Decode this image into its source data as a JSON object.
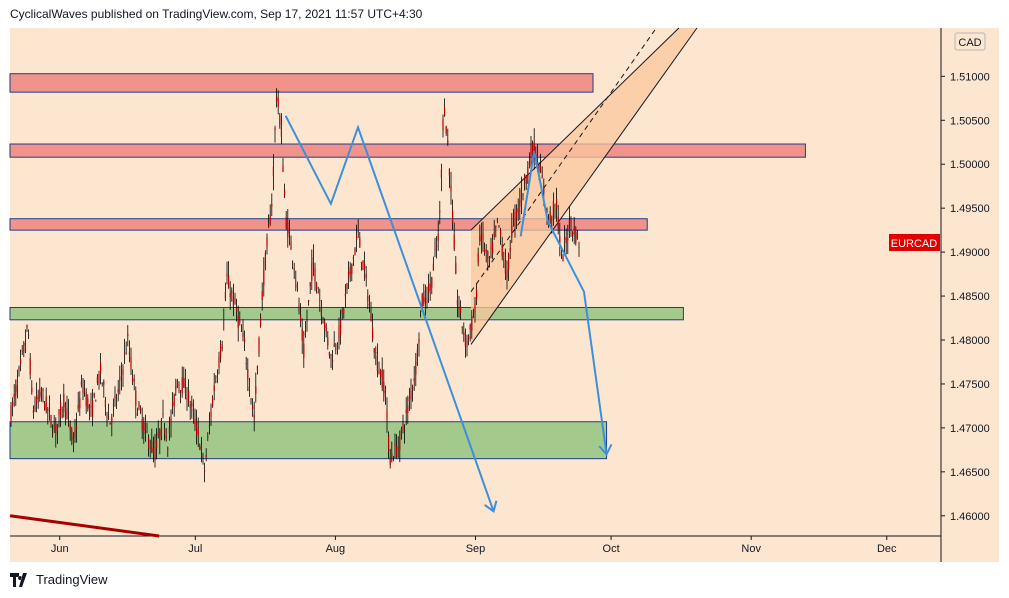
{
  "header": {
    "text": "CyclicalWaves published on TradingView.com, Sep 17, 2021 11:57 UTC+4:30"
  },
  "footer": {
    "brand": "TradingView",
    "logo_icon": "tradingview-logo-icon"
  },
  "colors": {
    "background": "#fde6cf",
    "resistance_zone": "#f1938b",
    "support_zone": "#a3c98c",
    "zone_border": "#1d3d8a",
    "channel_fill": "#f9c79c",
    "arrow": "#3d8fdb",
    "candle": "#b40000",
    "wick": "#000000",
    "trendline": "#a60000",
    "badge": "#e10000"
  },
  "chart_data": {
    "type": "candlestick",
    "symbol": "EURCAD",
    "currency": "CAD",
    "x_axis": {
      "ticks": [
        "Jun",
        "Jul",
        "Aug",
        "Sep",
        "Oct",
        "Nov",
        "Dec"
      ],
      "range": [
        "2021-05-21",
        "2021-12-13"
      ]
    },
    "y_axis": {
      "ticks": [
        "1.51000",
        "1.50500",
        "1.50000",
        "1.49500",
        "1.49000",
        "1.48500",
        "1.48000",
        "1.47500",
        "1.47000",
        "1.46500",
        "1.46000"
      ],
      "ylim": [
        1.4577,
        1.5155
      ]
    },
    "last_price_label": "EURCAD",
    "price_path": [
      [
        "2021-05-21",
        1.471
      ],
      [
        "2021-05-23",
        1.476
      ],
      [
        "2021-05-25",
        1.4815
      ],
      [
        "2021-05-26",
        1.472
      ],
      [
        "2021-05-28",
        1.474
      ],
      [
        "2021-05-31",
        1.4695
      ],
      [
        "2021-06-02",
        1.4735
      ],
      [
        "2021-06-04",
        1.468
      ],
      [
        "2021-06-06",
        1.475
      ],
      [
        "2021-06-08",
        1.4715
      ],
      [
        "2021-06-10",
        1.4765
      ],
      [
        "2021-06-12",
        1.4705
      ],
      [
        "2021-06-14",
        1.474
      ],
      [
        "2021-06-16",
        1.48
      ],
      [
        "2021-06-18",
        1.4728
      ],
      [
        "2021-06-20",
        1.4695
      ],
      [
        "2021-06-22",
        1.467
      ],
      [
        "2021-06-24",
        1.471
      ],
      [
        "2021-06-25",
        1.4685
      ],
      [
        "2021-06-27",
        1.4755
      ],
      [
        "2021-06-29",
        1.4745
      ],
      [
        "2021-07-01",
        1.4705
      ],
      [
        "2021-07-02",
        1.4685
      ],
      [
        "2021-07-03",
        1.465
      ],
      [
        "2021-07-05",
        1.474
      ],
      [
        "2021-07-07",
        1.48
      ],
      [
        "2021-07-08",
        1.487
      ],
      [
        "2021-07-10",
        1.4835
      ],
      [
        "2021-07-12",
        1.479
      ],
      [
        "2021-07-14",
        1.471
      ],
      [
        "2021-07-16",
        1.4865
      ],
      [
        "2021-07-18",
        1.496
      ],
      [
        "2021-07-19",
        1.508
      ],
      [
        "2021-07-20",
        1.504
      ],
      [
        "2021-07-21",
        1.494
      ],
      [
        "2021-07-23",
        1.4885
      ],
      [
        "2021-07-25",
        1.4785
      ],
      [
        "2021-07-27",
        1.489
      ],
      [
        "2021-07-29",
        1.4835
      ],
      [
        "2021-07-31",
        1.478
      ],
      [
        "2021-08-02",
        1.481
      ],
      [
        "2021-08-04",
        1.487
      ],
      [
        "2021-08-06",
        1.492
      ],
      [
        "2021-08-08",
        1.486
      ],
      [
        "2021-08-10",
        1.478
      ],
      [
        "2021-08-12",
        1.4745
      ],
      [
        "2021-08-13",
        1.4665
      ],
      [
        "2021-08-15",
        1.468
      ],
      [
        "2021-08-17",
        1.472
      ],
      [
        "2021-08-19",
        1.4775
      ],
      [
        "2021-08-20",
        1.484
      ],
      [
        "2021-08-22",
        1.486
      ],
      [
        "2021-08-24",
        1.4925
      ],
      [
        "2021-08-25",
        1.5075
      ],
      [
        "2021-08-26",
        1.5015
      ],
      [
        "2021-08-27",
        1.4935
      ],
      [
        "2021-08-28",
        1.4845
      ],
      [
        "2021-08-30",
        1.4795
      ],
      [
        "2021-09-01",
        1.4835
      ],
      [
        "2021-09-02",
        1.4925
      ],
      [
        "2021-09-04",
        1.4885
      ],
      [
        "2021-09-06",
        1.4935
      ],
      [
        "2021-09-08",
        1.487
      ],
      [
        "2021-09-09",
        1.4925
      ],
      [
        "2021-09-11",
        1.496
      ],
      [
        "2021-09-13",
        1.5005
      ],
      [
        "2021-09-14",
        1.502
      ],
      [
        "2021-09-16",
        1.4975
      ],
      [
        "2021-09-17",
        1.4935
      ],
      [
        "2021-09-19",
        1.4955
      ],
      [
        "2021-09-20",
        1.489
      ],
      [
        "2021-09-22",
        1.4935
      ],
      [
        "2021-09-24",
        1.491
      ]
    ],
    "zones": [
      {
        "kind": "resistance",
        "from": "2021-05-21",
        "to": "2021-09-27",
        "low": 1.5082,
        "high": 1.5103
      },
      {
        "kind": "resistance",
        "from": "2021-05-21",
        "to": "2021-11-13",
        "low": 1.5008,
        "high": 1.5023
      },
      {
        "kind": "resistance",
        "from": "2021-05-21",
        "to": "2021-10-09",
        "low": 1.4925,
        "high": 1.4938
      },
      {
        "kind": "support",
        "from": "2021-05-21",
        "to": "2021-10-17",
        "low": 1.4823,
        "high": 1.4837
      },
      {
        "kind": "support",
        "from": "2021-05-21",
        "to": "2021-09-30",
        "low": 1.4665,
        "high": 1.4707
      }
    ],
    "channel": {
      "upper": [
        [
          "2021-08-31",
          1.4925
        ],
        [
          "2021-10-16",
          1.5155
        ]
      ],
      "middle": [
        [
          "2021-08-31",
          1.4855
        ],
        [
          "2021-10-11",
          1.5155
        ]
      ],
      "lower": [
        [
          "2021-08-31",
          1.4795
        ],
        [
          "2021-10-20",
          1.5155
        ]
      ]
    },
    "projection_paths": [
      [
        [
          "2021-07-21",
          1.5055
        ],
        [
          "2021-07-31",
          1.4955
        ],
        [
          "2021-08-06",
          1.5042
        ],
        [
          "2021-09-05",
          1.4605
        ]
      ],
      [
        [
          "2021-09-11",
          1.4918
        ],
        [
          "2021-09-14",
          1.5015
        ],
        [
          "2021-09-17",
          1.4935
        ],
        [
          "2021-09-25",
          1.4855
        ],
        [
          "2021-09-30",
          1.467
        ]
      ]
    ],
    "trendline": [
      [
        "2021-05-21",
        1.46
      ],
      [
        "2021-06-23",
        1.4577
      ]
    ]
  }
}
